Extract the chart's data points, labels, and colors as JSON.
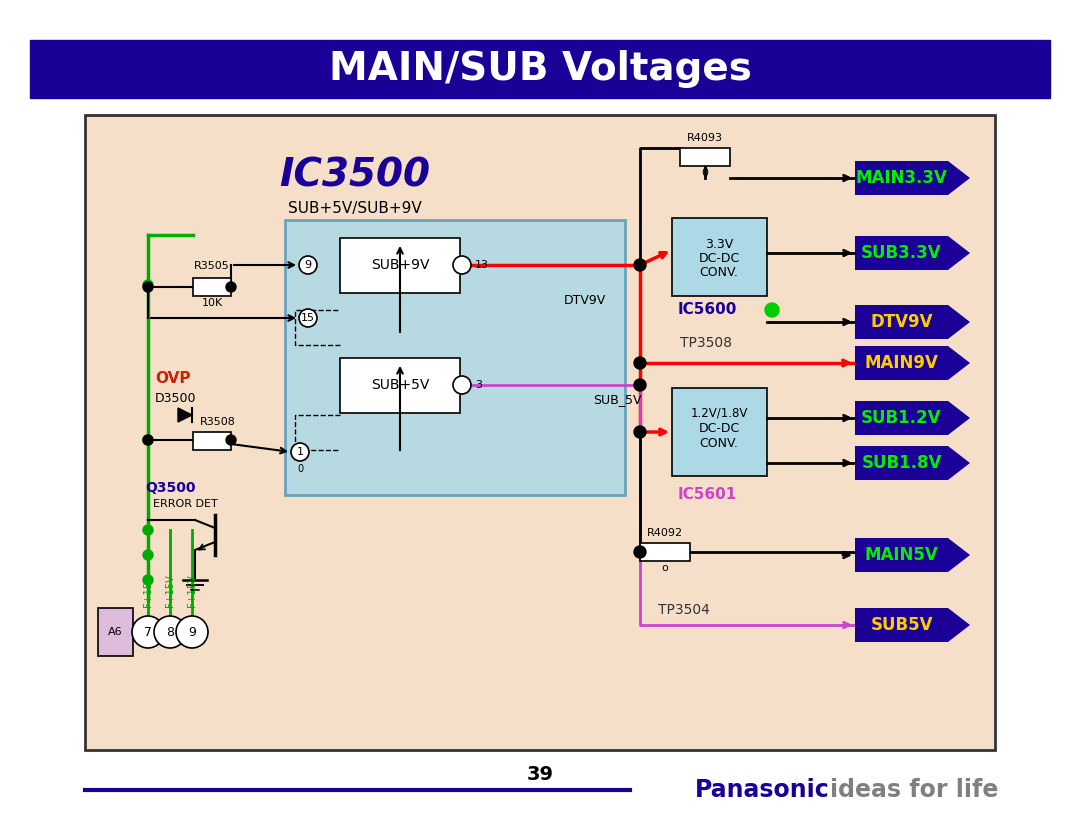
{
  "title": "MAIN/SUB Voltages",
  "title_bg": "#1a0096",
  "title_fg": "white",
  "page_number": "39",
  "footer_line_color": "#1a0096",
  "panasonic_color": "#1a0096",
  "ideas_color": "#808080",
  "diagram_bg": "#f5dfc8",
  "diagram_border": "#333333",
  "ic3500_color": "#1a0096",
  "ic_box_color": "#add8e6",
  "ic_box_border": "#5599bb",
  "red_line": "#ff0000",
  "green_line": "#00aa00",
  "purple_line": "#cc44cc",
  "ovp_color": "#cc2200",
  "q3500_color": "#1a0096",
  "ic5600_color": "#1a0096",
  "ic5601_color": "#cc44cc",
  "connector_bg": "#1a0096",
  "connector_labels": [
    "MAIN3.3V",
    "SUB3.3V",
    "DTV9V",
    "MAIN9V",
    "SUB1.2V",
    "SUB1.8V",
    "MAIN5V",
    "SUB5V"
  ],
  "connector_colors": [
    "#00ee00",
    "#00ee00",
    "#ffcc00",
    "#ffcc00",
    "#00ee00",
    "#00ee00",
    "#00ee00",
    "#ffcc00"
  ],
  "connector_y": [
    178,
    253,
    322,
    363,
    418,
    463,
    555,
    625
  ]
}
